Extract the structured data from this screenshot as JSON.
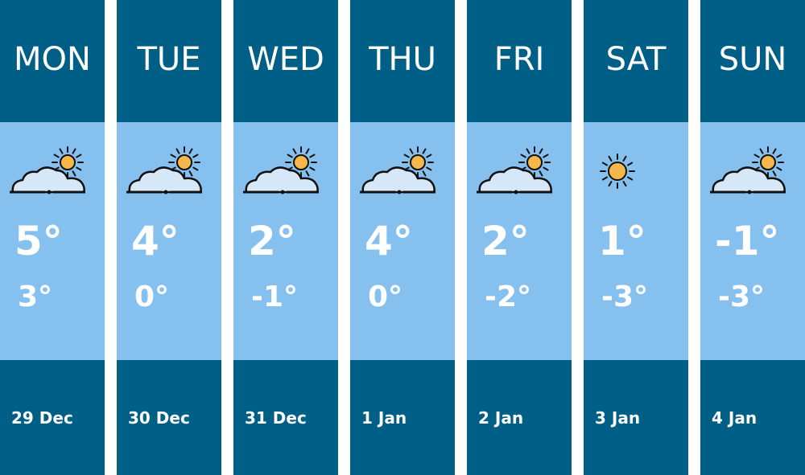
{
  "colors": {
    "header": "#005f86",
    "body": "#86c0ee",
    "sun": "#f7b84b",
    "cloud": "#d6e8f7"
  },
  "days": [
    {
      "day": "MON",
      "icon": "partly-cloudy-icon",
      "high": "5°",
      "low": "3°",
      "date": "29 Dec"
    },
    {
      "day": "TUE",
      "icon": "partly-cloudy-icon",
      "high": "4°",
      "low": "0°",
      "date": "30 Dec"
    },
    {
      "day": "WED",
      "icon": "partly-cloudy-icon",
      "high": "2°",
      "low": "-1°",
      "date": "31 Dec"
    },
    {
      "day": "THU",
      "icon": "partly-cloudy-icon",
      "high": "4°",
      "low": "0°",
      "date": "1 Jan"
    },
    {
      "day": "FRI",
      "icon": "partly-cloudy-icon",
      "high": "2°",
      "low": "-2°",
      "date": "2 Jan"
    },
    {
      "day": "SAT",
      "icon": "sunny-icon",
      "high": "1°",
      "low": "-3°",
      "date": "3 Jan"
    },
    {
      "day": "SUN",
      "icon": "partly-cloudy-icon",
      "high": "-1°",
      "low": "-3°",
      "date": "4 Jan"
    }
  ]
}
